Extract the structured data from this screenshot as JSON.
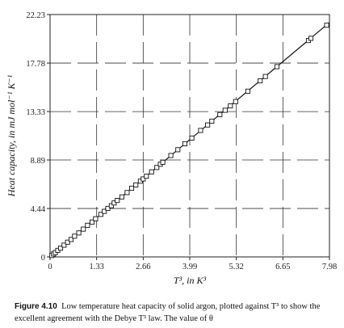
{
  "chart_data": {
    "type": "scatter",
    "xlabel": "T³, in K³",
    "ylabel": "Heat capacity, in mJ mol⁻¹ K⁻¹",
    "x_ticks": [
      "0",
      "1.33",
      "2.66",
      "3.99",
      "5.32",
      "6.65",
      "7.98"
    ],
    "y_ticks": [
      "0",
      "4.44",
      "8.89",
      "13.33",
      "17.78",
      "22.23"
    ],
    "xlim": [
      0,
      7.98
    ],
    "ylim": [
      0,
      22.23
    ],
    "grid": "dashed",
    "marker": "open-square",
    "fit_line": {
      "x": [
        0,
        7.98
      ],
      "y": [
        0,
        21.5
      ]
    },
    "series": [
      {
        "x": [
          0.05,
          0.1,
          0.15,
          0.22,
          0.3,
          0.4,
          0.5,
          0.6,
          0.7,
          0.82,
          0.95,
          1.07,
          1.2,
          1.3,
          1.45,
          1.55,
          1.65,
          1.75,
          1.83,
          1.92,
          2.05,
          2.2,
          2.33,
          2.45,
          2.58,
          2.66,
          2.75,
          2.9,
          3.05,
          3.15,
          3.22,
          3.45,
          3.65,
          3.85,
          4.05,
          4.3,
          4.5,
          4.62,
          4.85,
          5.0,
          5.15,
          5.3,
          5.65,
          6.0,
          6.15,
          6.48,
          7.38,
          7.45,
          7.9
        ],
        "y": [
          0.13,
          0.27,
          0.4,
          0.6,
          0.8,
          1.08,
          1.35,
          1.6,
          1.9,
          2.2,
          2.55,
          2.9,
          3.2,
          3.5,
          3.9,
          4.18,
          4.45,
          4.7,
          4.95,
          5.18,
          5.5,
          5.9,
          6.3,
          6.6,
          6.95,
          7.15,
          7.4,
          7.8,
          8.2,
          8.5,
          8.68,
          9.3,
          9.83,
          10.38,
          10.9,
          11.6,
          12.1,
          12.45,
          13.05,
          13.45,
          13.85,
          14.25,
          15.2,
          16.15,
          16.55,
          17.45,
          19.85,
          20.05,
          21.25
        ]
      }
    ]
  },
  "caption": {
    "label": "Figure 4.10",
    "text": "Low temperature heat capacity of solid argon, plotted against T³ to show the excellent agreement with the Debye T³ law. The value of θ"
  }
}
